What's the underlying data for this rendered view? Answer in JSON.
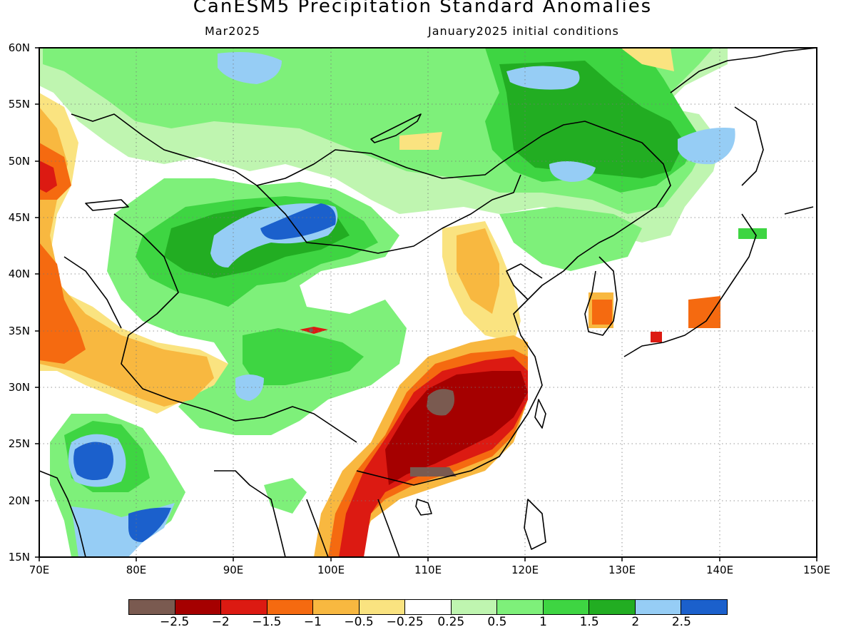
{
  "title": "CanESM5 Precipitation Standard Anomalies",
  "subtitle_left": "Mar2025",
  "subtitle_right": "January2025 initial conditions",
  "lat_labels": [
    "60N",
    "55N",
    "50N",
    "45N",
    "40N",
    "35N",
    "30N",
    "25N",
    "20N",
    "15N"
  ],
  "lon_labels": [
    "70E",
    "80E",
    "90E",
    "100E",
    "110E",
    "120E",
    "130E",
    "140E",
    "150E"
  ],
  "legend": {
    "colors": [
      "#7a5a50",
      "#a50000",
      "#dc1a12",
      "#f56a10",
      "#f8b840",
      "#fae380",
      "#ffffff",
      "#bff5b0",
      "#7ef07a",
      "#3ed542",
      "#22ad22",
      "#96cdf5",
      "#1b60cc"
    ],
    "labels": [
      "−2.5",
      "−2",
      "−1.5",
      "−1",
      "−0.5",
      "−0.25",
      "0.25",
      "0.5",
      "1",
      "1.5",
      "2",
      "2.5"
    ]
  },
  "colors": {
    "grid": "#777777",
    "coast": "#000000"
  }
}
